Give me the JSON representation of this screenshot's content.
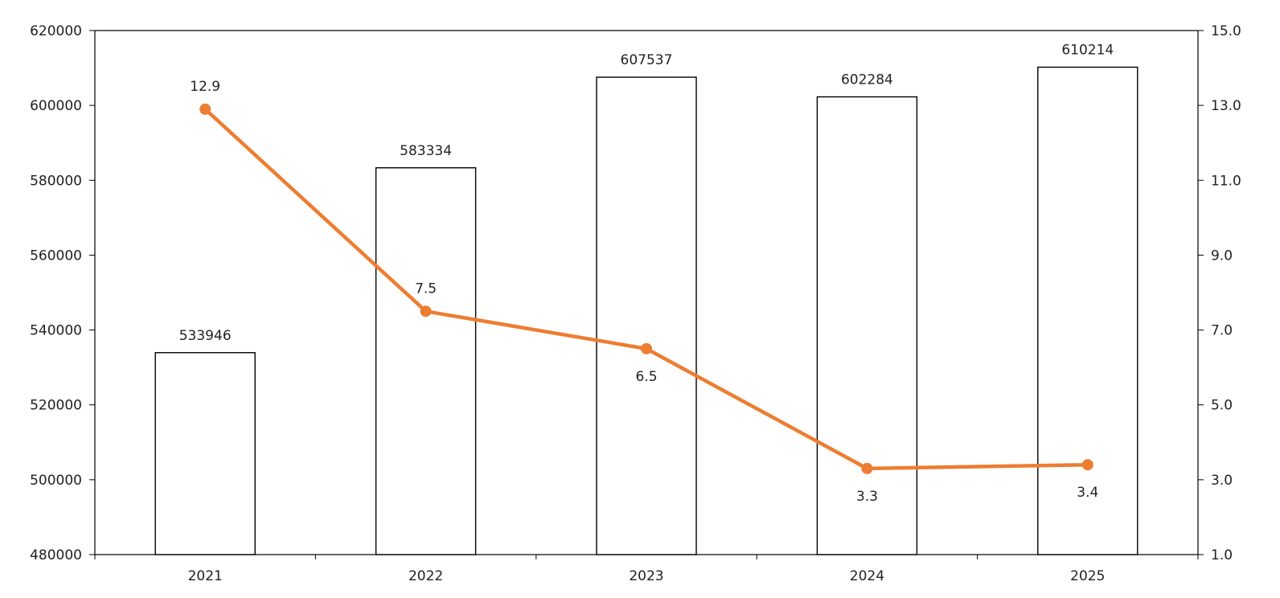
{
  "chart_data": {
    "type": "bar",
    "title": "",
    "xlabel": "",
    "ylabel": "",
    "y2label": "",
    "categories": [
      "2021",
      "2022",
      "2023",
      "2024",
      "2025"
    ],
    "series": [
      {
        "kind": "bar",
        "axis": "left",
        "values": [
          533946,
          583334,
          607537,
          602284,
          610214
        ],
        "labels": [
          "533946",
          "583334",
          "607537",
          "602284",
          "610214"
        ],
        "color": "#ffffff",
        "stroke": "#000000"
      },
      {
        "kind": "line",
        "axis": "right",
        "values": [
          12.9,
          7.5,
          6.5,
          3.3,
          3.4
        ],
        "labels": [
          "12.9",
          "7.5",
          "6.5",
          "3.3",
          "3.4"
        ],
        "label_position": [
          "above",
          "above",
          "below",
          "below",
          "below"
        ],
        "color": "#ed7d31"
      }
    ],
    "ylim": [
      480000,
      620000
    ],
    "yticks": [
      "480000",
      "500000",
      "520000",
      "540000",
      "560000",
      "580000",
      "600000",
      "620000"
    ],
    "y2lim": [
      1.0,
      15.0
    ],
    "y2ticks": [
      "1.0",
      "3.0",
      "5.0",
      "7.0",
      "9.0",
      "11.0",
      "13.0",
      "15.0"
    ],
    "grid": false,
    "legend": "none"
  }
}
